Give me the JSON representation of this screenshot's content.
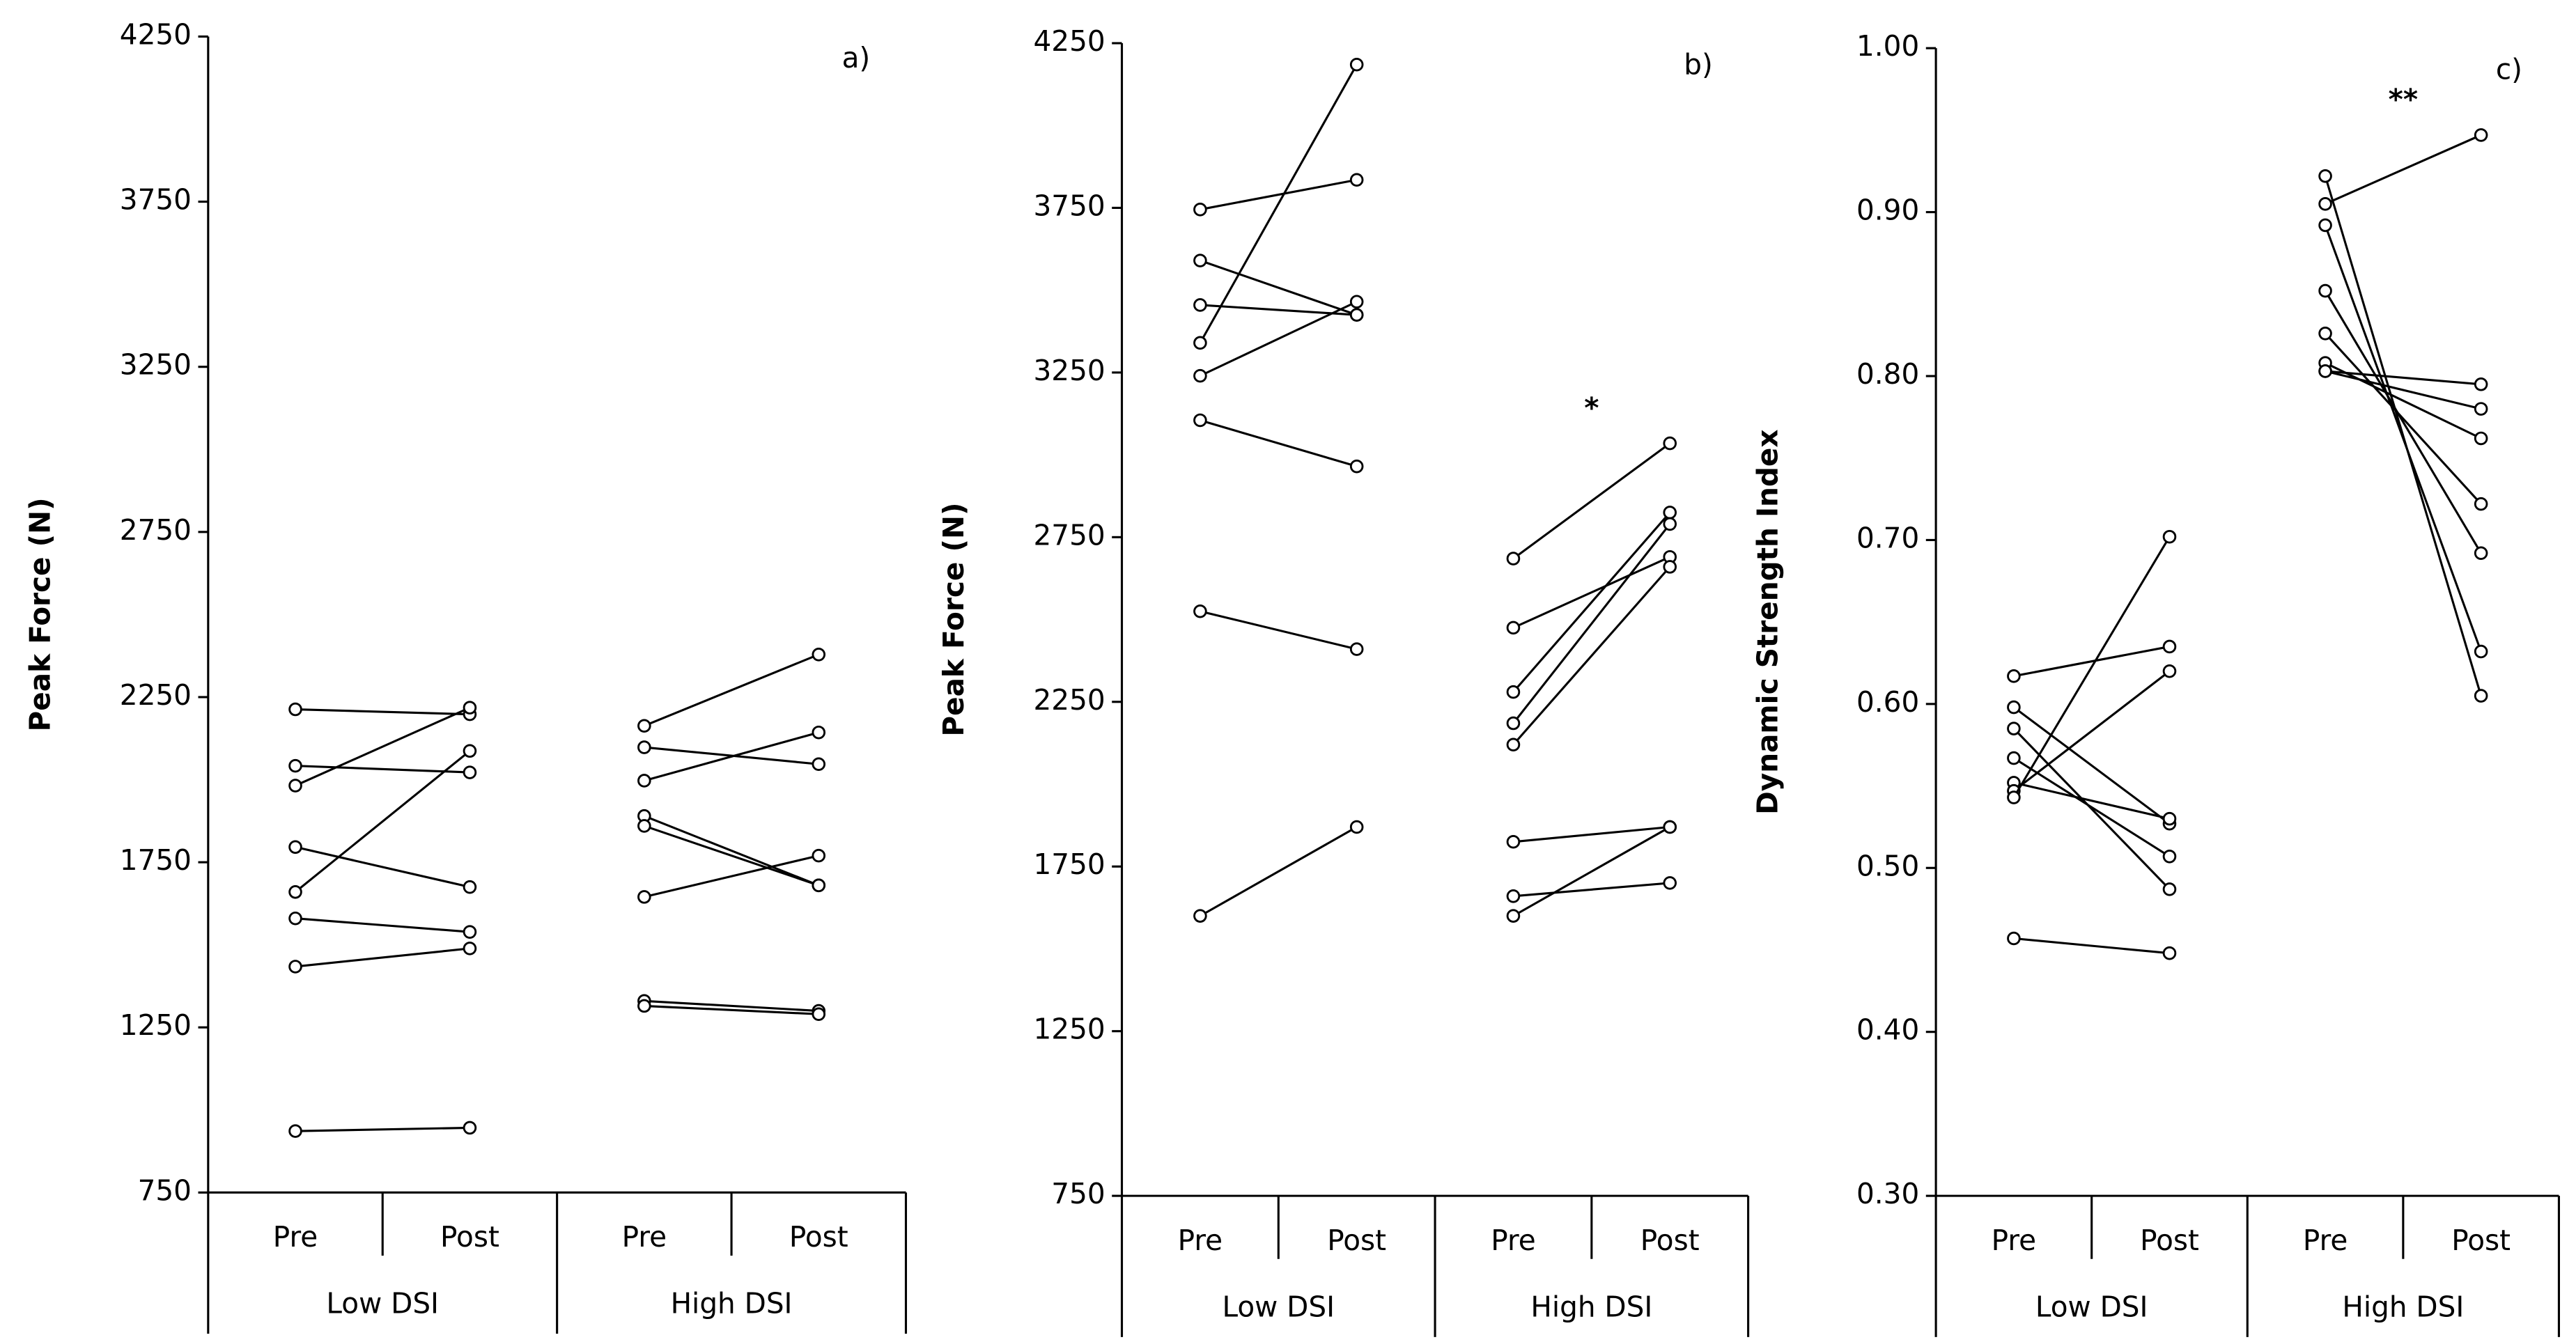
{
  "chart_data": [
    {
      "type": "paired",
      "label": "a)",
      "ylabel": "Peak Force (N)",
      "ylim": [
        750,
        4250
      ],
      "yticks": [
        750,
        1250,
        1750,
        2250,
        2750,
        3250,
        3750,
        4250
      ],
      "categories": [
        "Pre",
        "Post",
        "Pre",
        "Post"
      ],
      "groups": [
        {
          "name": "Low DSI",
          "pairs": [
            [
              2213,
              2198
            ],
            [
              2042,
              2022
            ],
            [
              1982,
              2218
            ],
            [
              1796,
              1675
            ],
            [
              1660,
              2087
            ],
            [
              1580,
              1539
            ],
            [
              1434,
              1489
            ],
            [
              936,
              946
            ]
          ]
        },
        {
          "name": "High DSI",
          "pairs": [
            [
              2163,
              2379
            ],
            [
              2098,
              2047
            ],
            [
              1997,
              2143
            ],
            [
              1890,
              1680
            ],
            [
              1860,
              1680
            ],
            [
              1645,
              1770
            ],
            [
              1330,
              1300
            ],
            [
              1315,
              1290
            ]
          ]
        }
      ]
    },
    {
      "type": "paired",
      "label": "b)",
      "ylabel": "Peak Force (N)",
      "ylim": [
        750,
        4250
      ],
      "yticks": [
        750,
        1250,
        1750,
        2250,
        2750,
        3250,
        3750,
        4250
      ],
      "categories": [
        "Pre",
        "Post",
        "Pre",
        "Post"
      ],
      "groups": [
        {
          "name": "Low DSI",
          "pairs": [
            [
              3745,
              3835
            ],
            [
              3590,
              3425
            ],
            [
              3455,
              3425
            ],
            [
              3340,
              4185
            ],
            [
              3240,
              3465
            ],
            [
              3105,
              2965
            ],
            [
              2525,
              2410
            ],
            [
              1600,
              1870
            ]
          ]
        },
        {
          "name": "High DSI",
          "annotation": "*",
          "pairs": [
            [
              2685,
              3035
            ],
            [
              2475,
              2690
            ],
            [
              2280,
              2825
            ],
            [
              2185,
              2790
            ],
            [
              2120,
              2660
            ],
            [
              1825,
              1870
            ],
            [
              1660,
              1700
            ],
            [
              1600,
              1870
            ]
          ]
        }
      ]
    },
    {
      "type": "paired",
      "label": "c)",
      "ylabel": "Dynamic Strength Index",
      "ylim": [
        0.3,
        1.0
      ],
      "yticks": [
        {
          "value": 0.3,
          "label": "0.30"
        },
        {
          "value": 0.4,
          "label": "0.40"
        },
        {
          "value": 0.5,
          "label": "0.50"
        },
        {
          "value": 0.6,
          "label": "0.60"
        },
        {
          "value": 0.7,
          "label": "0.70"
        },
        {
          "value": 0.8,
          "label": "0.80"
        },
        {
          "value": 0.9,
          "label": "0.90"
        },
        {
          "value": 1.0,
          "label": "1.00"
        }
      ],
      "categories": [
        "Pre",
        "Post",
        "Pre",
        "Post"
      ],
      "groups": [
        {
          "name": "Low DSI",
          "pairs": [
            [
              0.617,
              0.635
            ],
            [
              0.598,
              0.527
            ],
            [
              0.585,
              0.487
            ],
            [
              0.567,
              0.507
            ],
            [
              0.552,
              0.53
            ],
            [
              0.547,
              0.62
            ],
            [
              0.543,
              0.702
            ],
            [
              0.457,
              0.448
            ]
          ]
        },
        {
          "name": "High DSI",
          "annotation": "**",
          "pairs": [
            [
              0.905,
              0.947
            ],
            [
              0.922,
              0.605
            ],
            [
              0.892,
              0.632
            ],
            [
              0.852,
              0.692
            ],
            [
              0.826,
              0.722
            ],
            [
              0.808,
              0.762
            ],
            [
              0.803,
              0.78
            ],
            [
              0.803,
              0.795
            ]
          ]
        }
      ]
    }
  ]
}
